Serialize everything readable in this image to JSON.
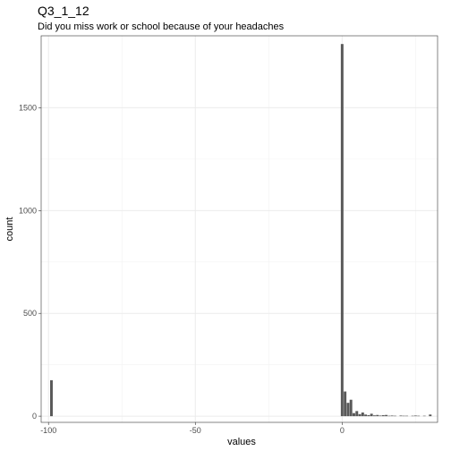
{
  "chart_data": {
    "type": "bar",
    "title": "Q3_1_12",
    "subtitle": "Did you miss work or school because of your headaches",
    "xlabel": "values",
    "ylabel": "count",
    "xlim": [
      -102.5,
      32.5
    ],
    "ylim": [
      -30,
      1850
    ],
    "x_ticks": [
      -100,
      -50,
      0
    ],
    "x_tick_labels": [
      "-100",
      "-50",
      "0"
    ],
    "y_ticks": [
      0,
      500,
      1000,
      1500
    ],
    "y_tick_labels": [
      "0",
      "500",
      "1000",
      "1500"
    ],
    "grid": true,
    "bar_color": "#595959",
    "bin_width": 0.9,
    "bins": [
      {
        "x": -99,
        "count": 175
      },
      {
        "x": 0,
        "count": 1810
      },
      {
        "x": 1,
        "count": 120
      },
      {
        "x": 2,
        "count": 65
      },
      {
        "x": 3,
        "count": 80
      },
      {
        "x": 4,
        "count": 15
      },
      {
        "x": 5,
        "count": 25
      },
      {
        "x": 6,
        "count": 10
      },
      {
        "x": 7,
        "count": 18
      },
      {
        "x": 8,
        "count": 8
      },
      {
        "x": 9,
        "count": 5
      },
      {
        "x": 10,
        "count": 12
      },
      {
        "x": 11,
        "count": 4
      },
      {
        "x": 12,
        "count": 6
      },
      {
        "x": 13,
        "count": 3
      },
      {
        "x": 14,
        "count": 5
      },
      {
        "x": 15,
        "count": 6
      },
      {
        "x": 16,
        "count": 2
      },
      {
        "x": 17,
        "count": 3
      },
      {
        "x": 18,
        "count": 2
      },
      {
        "x": 20,
        "count": 3
      },
      {
        "x": 21,
        "count": 2
      },
      {
        "x": 22,
        "count": 2
      },
      {
        "x": 24,
        "count": 2
      },
      {
        "x": 25,
        "count": 3
      },
      {
        "x": 26,
        "count": 2
      },
      {
        "x": 28,
        "count": 2
      },
      {
        "x": 30,
        "count": 8
      }
    ]
  }
}
